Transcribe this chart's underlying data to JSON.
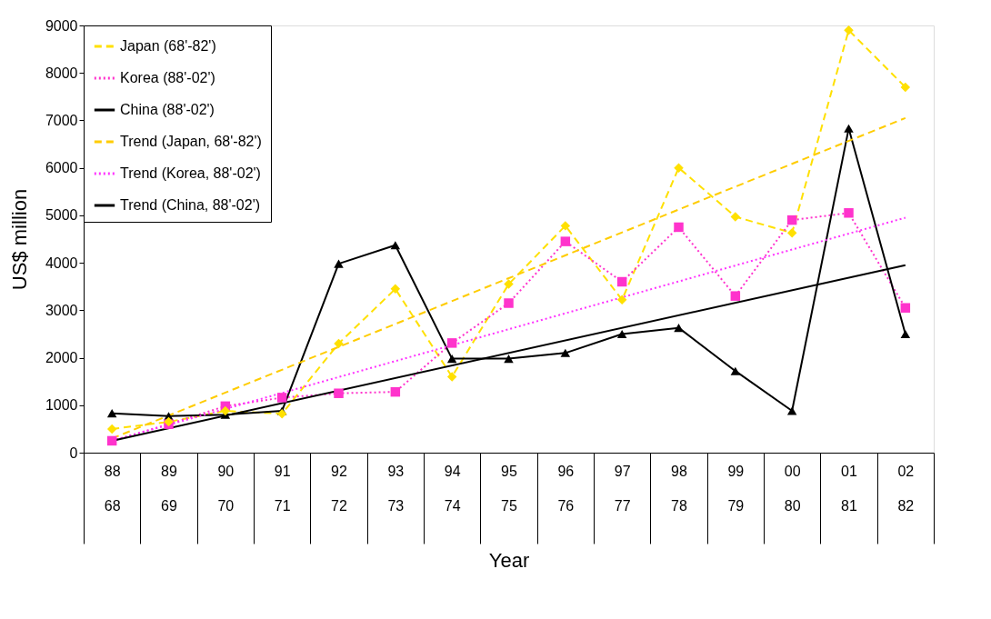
{
  "chart_data": {
    "type": "line",
    "xlabel": "Year",
    "ylabel": "US$ million",
    "categories": [
      "88\n68",
      "89\n69",
      "90\n70",
      "91\n71",
      "92\n72",
      "93\n73",
      "94\n74",
      "95\n75",
      "96\n76",
      "97\n77",
      "98\n78",
      "99\n79",
      "00\n80",
      "01\n81",
      "02\n82"
    ],
    "ylim": [
      0,
      9000
    ],
    "yticks": [
      0,
      1000,
      2000,
      3000,
      4000,
      5000,
      6000,
      7000,
      8000,
      9000
    ],
    "grid": false,
    "legend": "top left",
    "series": [
      {
        "name": "Japan (68'-82')",
        "color": "#ffe000",
        "marker": "diamond",
        "line_style": "dashed",
        "values": [
          500,
          650,
          880,
          820,
          2300,
          3450,
          1600,
          3550,
          4780,
          3220,
          6000,
          4970,
          4630,
          8900,
          7700
        ]
      },
      {
        "name": "Korea (88'-02')",
        "color": "#ff33cc",
        "marker": "square",
        "line_style": "dotted",
        "values": [
          250,
          600,
          980,
          1160,
          1250,
          1280,
          2310,
          3150,
          4450,
          3600,
          4750,
          3300,
          4900,
          5050,
          3050
        ]
      },
      {
        "name": "China (88'-02')",
        "color": "#000000",
        "marker": "triangle",
        "line_style": "solid",
        "values": [
          830,
          770,
          800,
          880,
          3980,
          4370,
          1980,
          1980,
          2100,
          2500,
          2630,
          1720,
          880,
          6830,
          2500
        ]
      },
      {
        "name": "Trend (Japan, 68'-82')",
        "color": "#ffcc00",
        "marker": "none",
        "line_style": "dashed",
        "x": [
          "88\n68",
          "02\n82"
        ],
        "values": [
          300,
          7050
        ]
      },
      {
        "name": "Trend (Korea, 88'-02')",
        "color": "#ff33ff",
        "marker": "none",
        "line_style": "dotted",
        "x": [
          "88\n68",
          "02\n82"
        ],
        "values": [
          250,
          4950
        ]
      },
      {
        "name": "Trend (China, 88'-02')",
        "color": "#000000",
        "marker": "none",
        "line_style": "solid",
        "x": [
          "88\n68",
          "02\n82"
        ],
        "values": [
          250,
          3950
        ]
      }
    ]
  }
}
